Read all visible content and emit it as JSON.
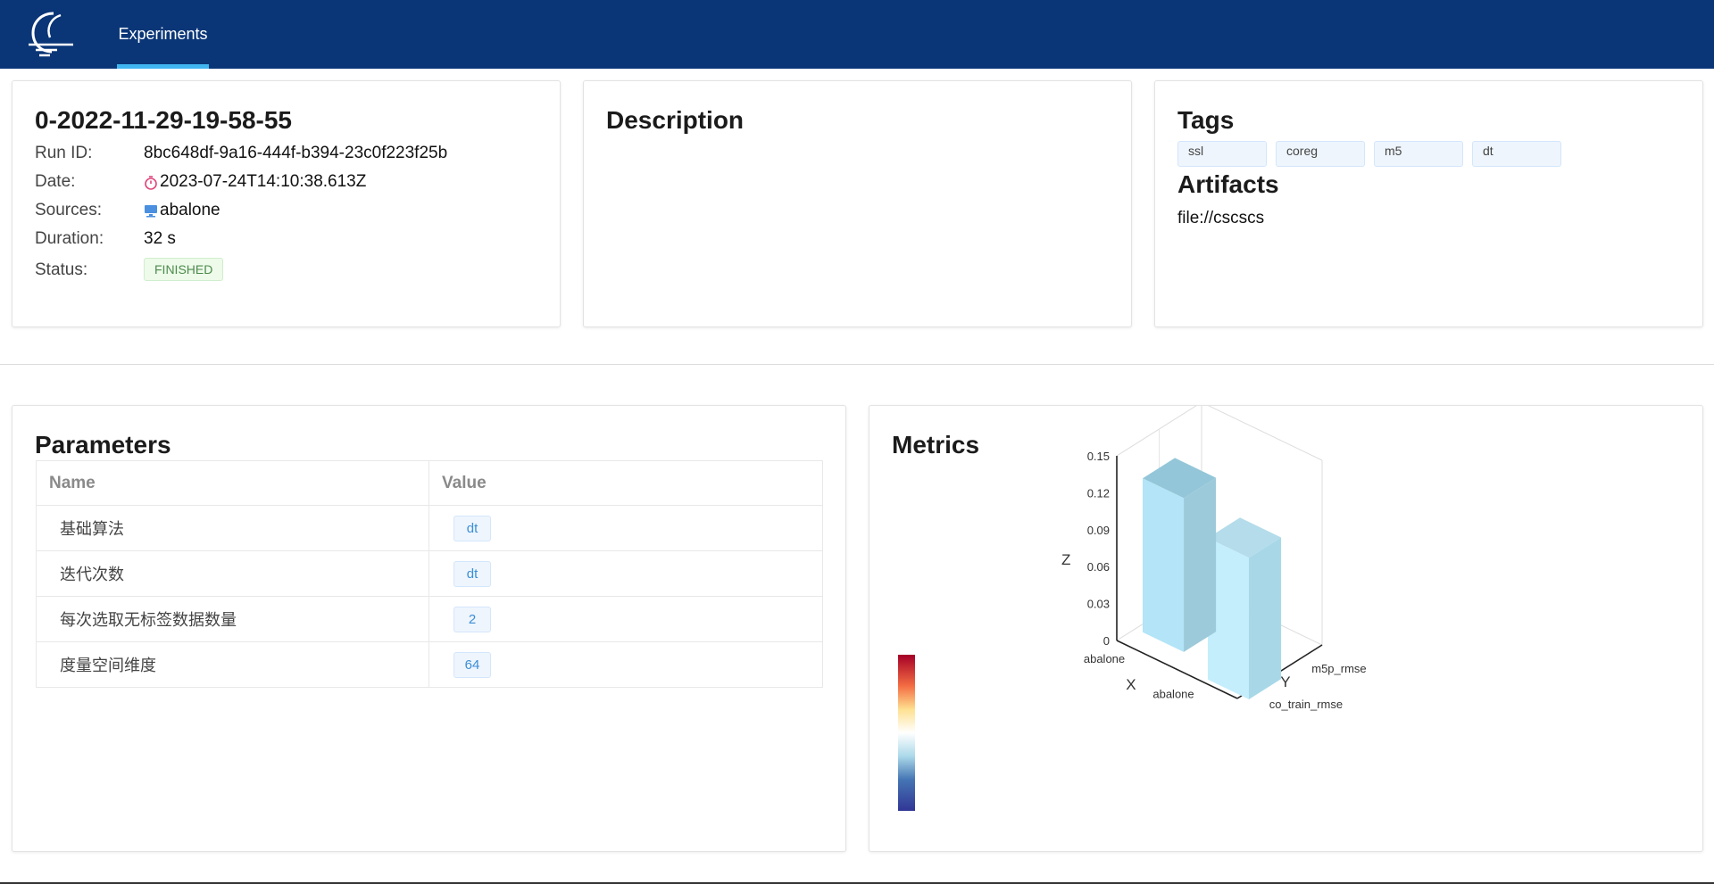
{
  "nav": {
    "tab_label": "Experiments"
  },
  "run": {
    "title": "0-2022-11-29-19-58-55",
    "rows": [
      {
        "label": "Run ID:",
        "value": "8bc648df-9a16-444f-b394-23c0f223f25b"
      },
      {
        "label": "Date:",
        "value": "2023-07-24T14:10:38.613Z",
        "icon": "stopwatch-icon"
      },
      {
        "label": "Sources:",
        "value": "abalone",
        "icon": "computer-icon"
      },
      {
        "label": "Duration:",
        "value": "32 s"
      },
      {
        "label": "Status:",
        "value": "FINISHED"
      }
    ]
  },
  "description": {
    "title": "Description"
  },
  "tags": {
    "title": "Tags",
    "items": [
      "ssl",
      "coreg",
      "m5",
      "dt"
    ]
  },
  "artifacts": {
    "title": "Artifacts",
    "items": [
      "file://cscscs"
    ]
  },
  "parameters": {
    "title": "Parameters",
    "columns": [
      "Name",
      "Value"
    ],
    "rows": [
      {
        "name": "基础算法",
        "value": "dt"
      },
      {
        "name": "迭代次数",
        "value": "dt"
      },
      {
        "name": "每次选取无标签数据数量",
        "value": "2"
      },
      {
        "name": "度量空间维度",
        "value": "64"
      }
    ]
  },
  "metrics": {
    "title": "Metrics",
    "chart_data": {
      "type": "bar",
      "subtype": "3d-bar",
      "x_axis": {
        "name": "X",
        "categories": [
          "abalone"
        ]
      },
      "y_axis": {
        "name": "Y",
        "categories": [
          "co_train_rmse",
          "m5p_rmse"
        ]
      },
      "z_axis": {
        "name": "Z",
        "range": [
          0,
          0.15
        ],
        "ticks": [
          "0",
          "0.03",
          "0.06",
          "0.09",
          "0.12",
          "0.15"
        ]
      },
      "points": [
        {
          "x": "abalone",
          "y": "co_train_rmse",
          "z": 0.115
        },
        {
          "x": "abalone",
          "y": "m5p_rmse",
          "z": 0.125
        }
      ],
      "visual_map": "blue-to-red gradient"
    }
  }
}
